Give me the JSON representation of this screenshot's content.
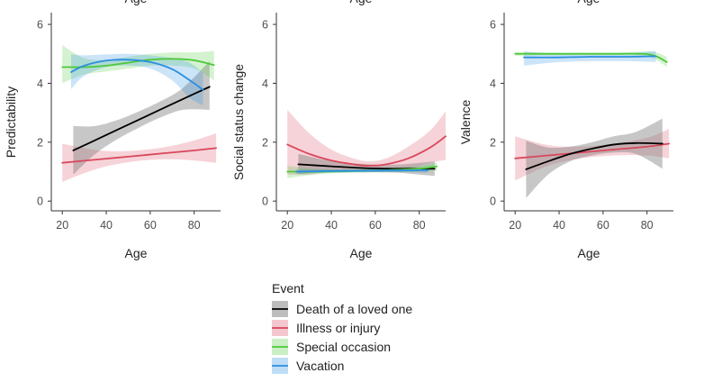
{
  "chart_data": {
    "type": "line",
    "description_words": "three smoothed-trend panels sharing an Age x-axis, with confidence ribbons",
    "top_cropped_labels": [
      "Age",
      "Age",
      "Age"
    ],
    "x_axis": {
      "label": "Age",
      "ticks": [
        20,
        40,
        60,
        80
      ],
      "xlim": [
        15,
        92
      ]
    },
    "y_axis": {
      "ticks": [
        0,
        2,
        4,
        6
      ],
      "ylim": [
        -0.3,
        6.4
      ]
    },
    "colors": {
      "Death of a loved one": "#000000",
      "Illness or injury": "#d9475c",
      "Special occasion": "#4fc93b",
      "Vacation": "#2b8ee0"
    },
    "panels": [
      {
        "ylabel": "Predictability",
        "series": [
          {
            "name": "Illness or injury",
            "x": [
              20,
              30,
              40,
              50,
              60,
              70,
              80,
              90
            ],
            "y": [
              1.3,
              1.37,
              1.44,
              1.51,
              1.58,
              1.65,
              1.72,
              1.8
            ],
            "lower": [
              0.65,
              0.95,
              1.18,
              1.32,
              1.4,
              1.42,
              1.38,
              1.3
            ],
            "upper": [
              1.95,
              1.8,
              1.7,
              1.7,
              1.76,
              1.88,
              2.06,
              2.3
            ]
          },
          {
            "name": "Death of a loved one",
            "x": [
              25,
              35,
              45,
              55,
              65,
              75,
              87
            ],
            "y": [
              1.72,
              2.07,
              2.42,
              2.77,
              3.12,
              3.47,
              3.88
            ],
            "lower": [
              0.9,
              1.6,
              2.1,
              2.5,
              2.85,
              3.1,
              3.1
            ],
            "upper": [
              2.55,
              2.55,
              2.75,
              3.05,
              3.4,
              3.85,
              4.75
            ]
          },
          {
            "name": "Special occasion",
            "x": [
              20,
              30,
              40,
              50,
              60,
              70,
              80,
              89
            ],
            "y": [
              4.55,
              4.55,
              4.6,
              4.7,
              4.8,
              4.83,
              4.78,
              4.62
            ],
            "lower": [
              4.0,
              4.3,
              4.4,
              4.5,
              4.6,
              4.6,
              4.5,
              4.1
            ],
            "upper": [
              5.3,
              4.85,
              4.8,
              4.9,
              5.0,
              5.05,
              5.05,
              5.1
            ]
          },
          {
            "name": "Vacation",
            "x": [
              24,
              30,
              40,
              50,
              60,
              70,
              78,
              84
            ],
            "y": [
              4.38,
              4.6,
              4.77,
              4.8,
              4.72,
              4.48,
              4.1,
              3.78
            ],
            "lower": [
              3.8,
              4.25,
              4.55,
              4.6,
              4.5,
              4.1,
              3.5,
              3.25
            ],
            "upper": [
              4.98,
              4.95,
              4.98,
              5.0,
              4.95,
              4.85,
              4.7,
              4.35
            ]
          }
        ]
      },
      {
        "ylabel": "Social status change",
        "series": [
          {
            "name": "Illness or injury",
            "x": [
              20,
              30,
              40,
              50,
              57,
              65,
              75,
              85,
              92
            ],
            "y": [
              1.92,
              1.6,
              1.38,
              1.25,
              1.2,
              1.25,
              1.45,
              1.82,
              2.2
            ],
            "lower": [
              0.9,
              0.9,
              1.0,
              1.05,
              1.05,
              1.07,
              1.1,
              1.3,
              1.4
            ],
            "upper": [
              3.1,
              2.3,
              1.75,
              1.45,
              1.35,
              1.45,
              1.85,
              2.4,
              3.05
            ]
          },
          {
            "name": "Death of a loved one",
            "x": [
              25,
              40,
              55,
              70,
              87
            ],
            "y": [
              1.25,
              1.18,
              1.12,
              1.1,
              1.1
            ],
            "lower": [
              0.92,
              1.0,
              0.98,
              0.96,
              0.85
            ],
            "upper": [
              1.6,
              1.36,
              1.26,
              1.24,
              1.35
            ]
          },
          {
            "name": "Special occasion",
            "x": [
              20,
              35,
              50,
              65,
              80,
              88
            ],
            "y": [
              1.0,
              1.0,
              1.02,
              1.05,
              1.1,
              1.18
            ],
            "lower": [
              0.78,
              0.92,
              0.96,
              0.98,
              1.0,
              1.02
            ],
            "upper": [
              1.2,
              1.08,
              1.08,
              1.12,
              1.2,
              1.32
            ]
          },
          {
            "name": "Vacation",
            "x": [
              24,
              40,
              55,
              70,
              84
            ],
            "y": [
              1.0,
              1.02,
              1.03,
              1.04,
              1.05
            ],
            "lower": [
              0.92,
              0.96,
              0.98,
              0.98,
              0.96
            ],
            "upper": [
              1.08,
              1.08,
              1.08,
              1.1,
              1.14
            ]
          }
        ]
      },
      {
        "ylabel": "Valence",
        "series": [
          {
            "name": "Illness or injury",
            "x": [
              20,
              35,
              50,
              65,
              80,
              90
            ],
            "y": [
              1.45,
              1.55,
              1.65,
              1.75,
              1.85,
              1.95
            ],
            "lower": [
              0.7,
              1.2,
              1.45,
              1.55,
              1.55,
              1.45
            ],
            "upper": [
              2.2,
              1.9,
              1.85,
              1.95,
              2.15,
              2.45
            ]
          },
          {
            "name": "Death of a loved one",
            "x": [
              25,
              35,
              45,
              55,
              65,
              75,
              87
            ],
            "y": [
              1.08,
              1.35,
              1.6,
              1.78,
              1.92,
              1.97,
              1.95
            ],
            "lower": [
              0.1,
              0.9,
              1.35,
              1.55,
              1.65,
              1.6,
              1.1
            ],
            "upper": [
              2.05,
              1.82,
              1.85,
              2.0,
              2.2,
              2.35,
              2.8
            ]
          },
          {
            "name": "Special occasion",
            "x": [
              20,
              35,
              50,
              65,
              78,
              84,
              89
            ],
            "y": [
              5.0,
              5.0,
              5.0,
              5.0,
              5.0,
              4.92,
              4.72
            ],
            "lower": [
              4.93,
              4.95,
              4.95,
              4.95,
              4.93,
              4.8,
              4.55
            ],
            "upper": [
              5.07,
              5.05,
              5.05,
              5.05,
              5.07,
              5.05,
              4.9
            ]
          },
          {
            "name": "Vacation",
            "x": [
              24,
              40,
              55,
              70,
              84
            ],
            "y": [
              4.88,
              4.88,
              4.9,
              4.9,
              4.92
            ],
            "lower": [
              4.6,
              4.72,
              4.75,
              4.75,
              4.72
            ],
            "upper": [
              5.08,
              5.0,
              5.02,
              5.02,
              5.1
            ]
          }
        ]
      }
    ],
    "legend": {
      "title": "Event",
      "placement": "bottom-center",
      "entries": [
        "Death of a loved one",
        "Illness or injury",
        "Special occasion",
        "Vacation"
      ]
    }
  }
}
